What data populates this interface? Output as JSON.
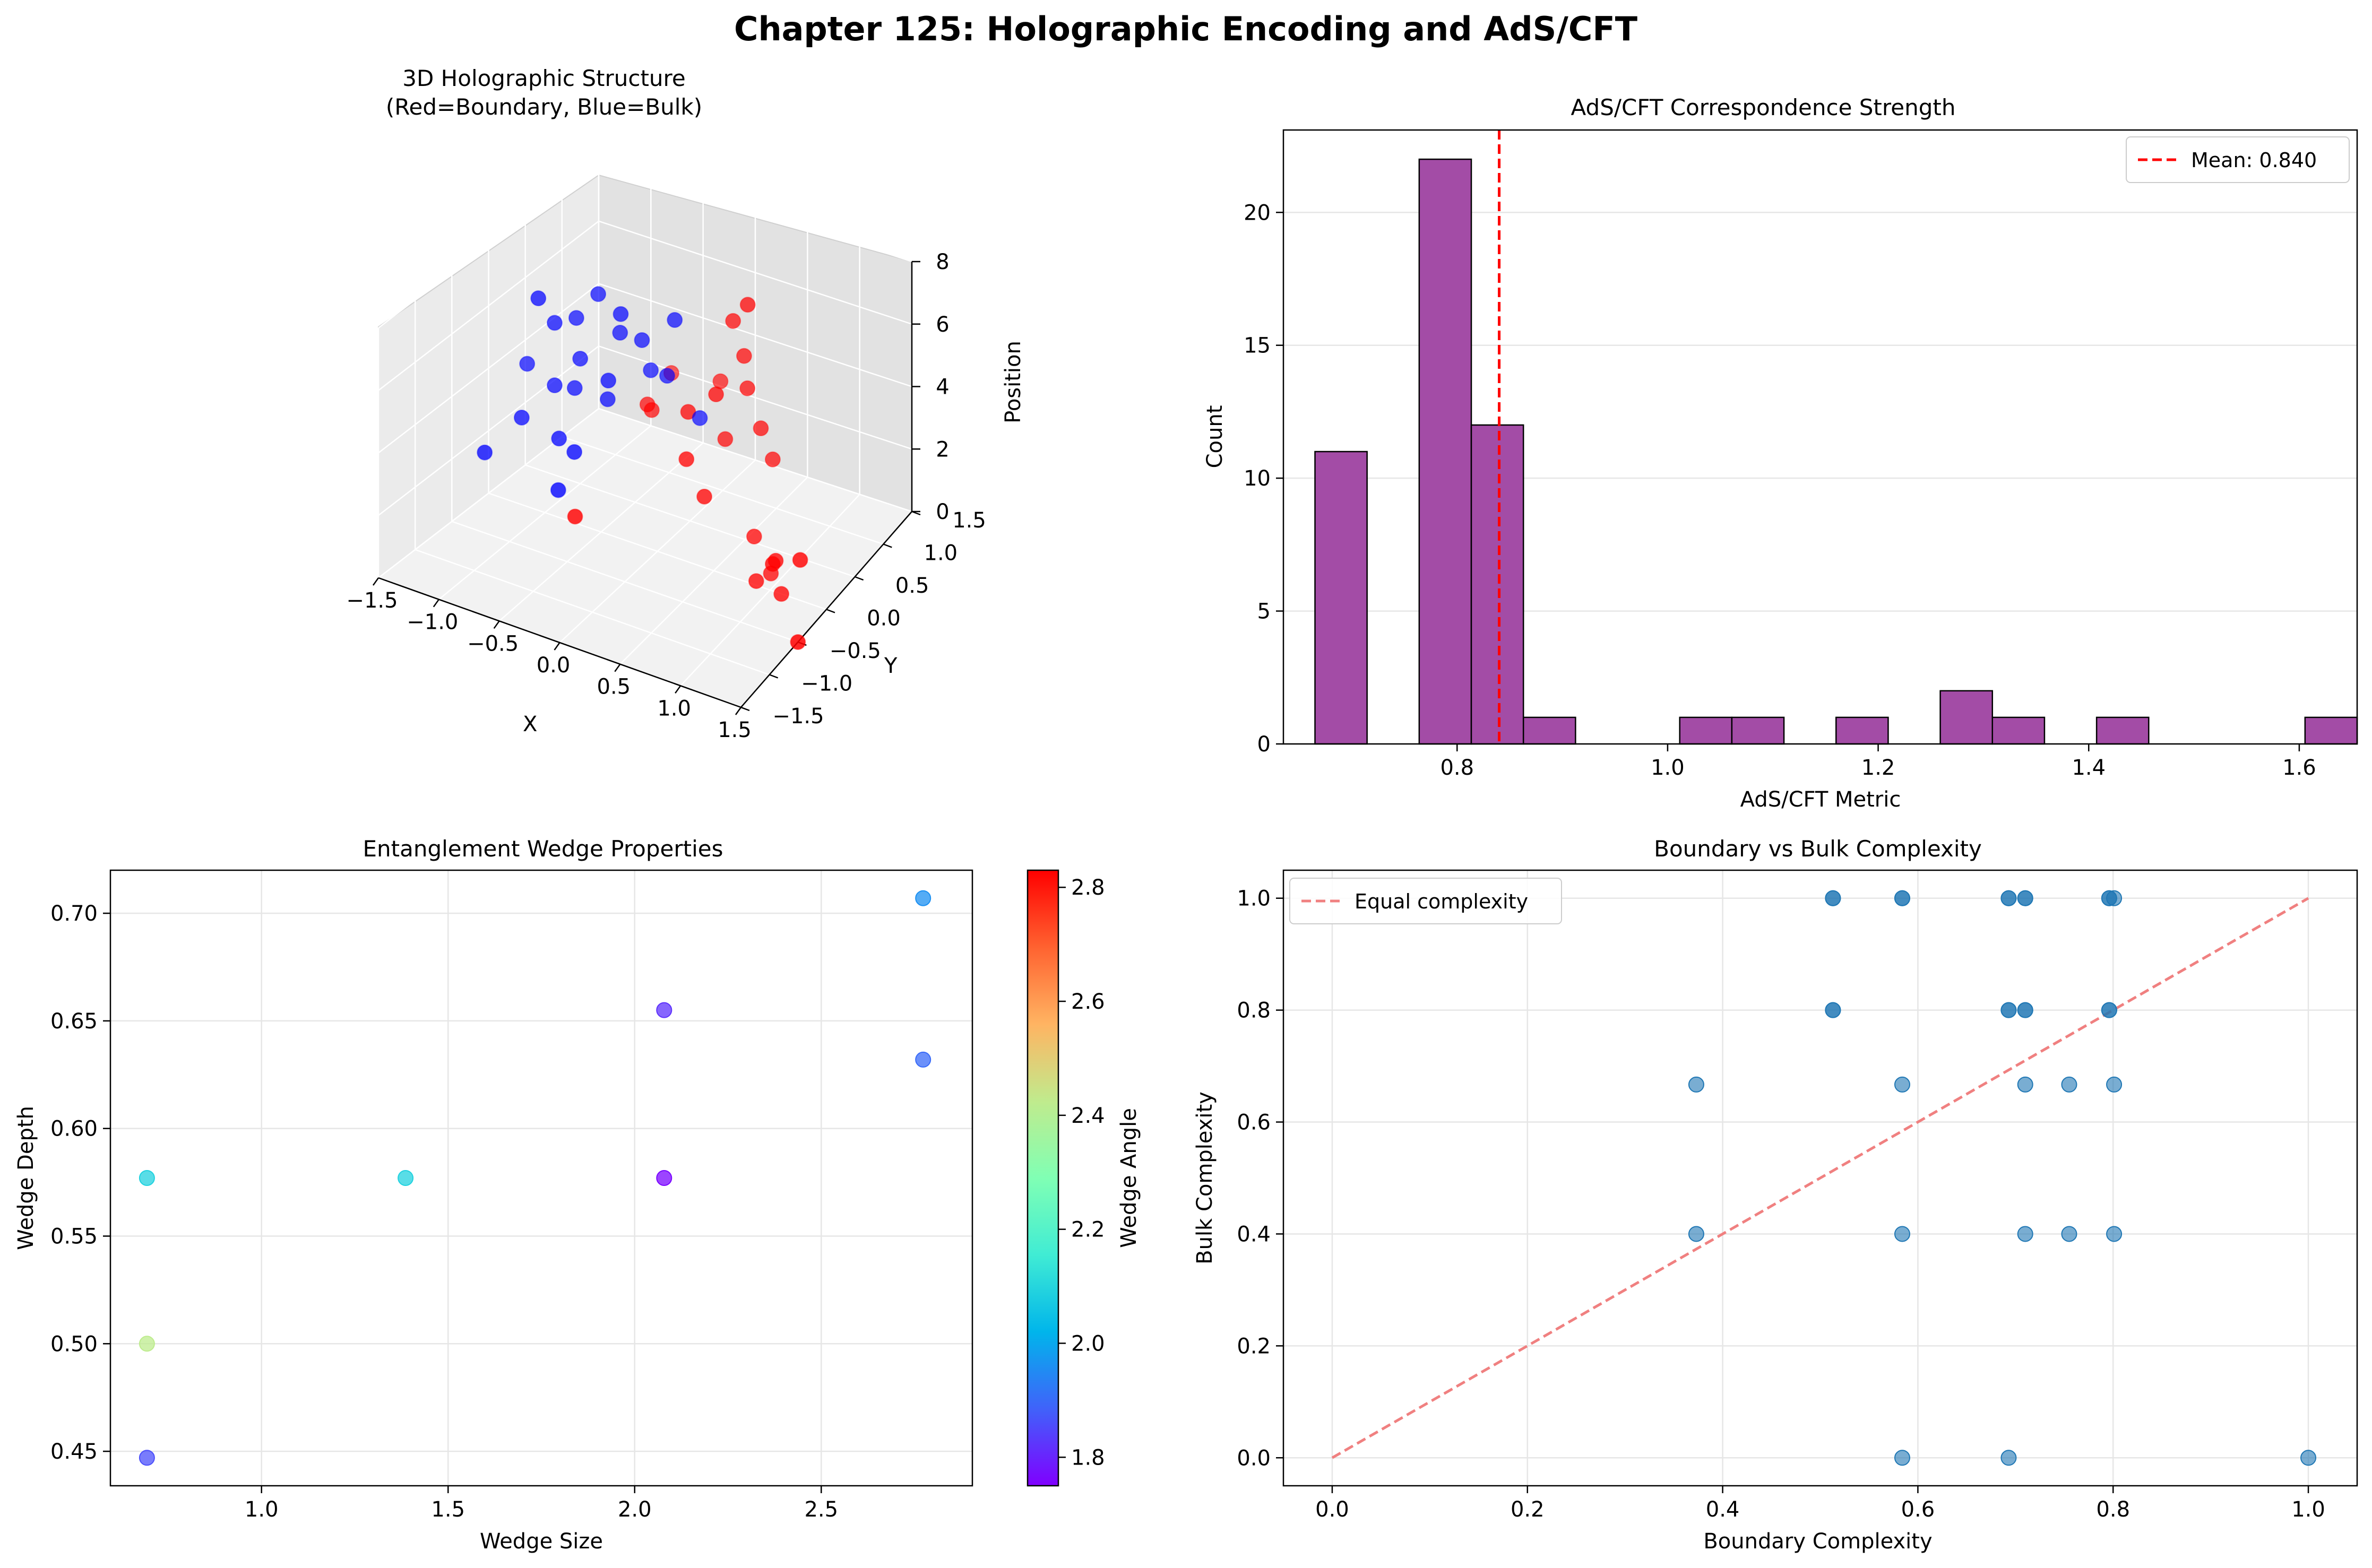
{
  "suptitle": "Chapter 125: Holographic Encoding and AdS/CFT",
  "chart_data": [
    {
      "type": "scatter",
      "projection": "3d",
      "title_line1": "3D Holographic Structure",
      "title_line2": "(Red=Boundary, Blue=Bulk)",
      "xlabel": "X",
      "ylabel": "Y",
      "zlabel": "Position",
      "xlim": [
        -1.5,
        1.5
      ],
      "ylim": [
        -1.5,
        1.5
      ],
      "zlim": [
        0,
        8
      ],
      "x_ticks": [
        "−1.5",
        "−1.0",
        "−0.5",
        "0.0",
        "0.5",
        "1.0",
        "1.5"
      ],
      "y_ticks": [
        "−1.5",
        "−1.0",
        "−0.5",
        "0.0",
        "0.5",
        "1.0",
        "1.5"
      ],
      "z_ticks": [
        "0",
        "2",
        "4",
        "6",
        "8"
      ],
      "colors": {
        "boundary": "#ff0000",
        "bulk": "#0000ff"
      },
      "series": [
        {
          "name": "Boundary",
          "points": [
            [
              0.62,
              0.33,
              8
            ],
            [
              1.4,
              -0.26,
              2
            ],
            [
              0.42,
              0.45,
              7
            ],
            [
              0.1,
              0.8,
              4
            ],
            [
              0.52,
              0.45,
              6
            ],
            [
              -0.45,
              0.6,
              3
            ],
            [
              0.55,
              0.45,
              5
            ],
            [
              -0.53,
              1.08,
              3
            ],
            [
              0.2,
              0.1,
              3
            ],
            [
              0.32,
              0.5,
              3
            ],
            [
              0.36,
              0.1,
              2
            ],
            [
              1.05,
              -0.05,
              1
            ],
            [
              -0.55,
              -0.3,
              1
            ],
            [
              0.1,
              0.3,
              4
            ],
            [
              -0.38,
              0.55,
              3
            ],
            [
              0.7,
              0.4,
              4
            ],
            [
              1.1,
              0.0,
              0
            ],
            [
              1.05,
              0.0,
              1
            ],
            [
              0.75,
              0.2,
              1
            ],
            [
              0.85,
              0.05,
              0
            ],
            [
              0.9,
              0.2,
              0
            ],
            [
              1.5,
              -0.5,
              0
            ],
            [
              0.38,
              0.25,
              5
            ],
            [
              0.78,
              0.45,
              3
            ]
          ]
        },
        {
          "name": "Bulk",
          "points": [
            [
              -1.2,
              0.45,
              5
            ],
            [
              -1.1,
              0.6,
              5
            ],
            [
              -0.9,
              0.6,
              6
            ],
            [
              -1.25,
              0.3,
              6
            ],
            [
              -0.7,
              0.6,
              5
            ],
            [
              -1.0,
              0.5,
              4
            ],
            [
              -0.65,
              0.35,
              4
            ],
            [
              -0.5,
              0.6,
              5
            ],
            [
              -1.55,
              0.6,
              3
            ],
            [
              -1.2,
              0.45,
              3
            ],
            [
              -1.05,
              0.5,
              3
            ],
            [
              -1.4,
              0.3,
              2
            ],
            [
              -1.0,
              0.2,
              2
            ],
            [
              -0.8,
              0.1,
              2
            ],
            [
              -0.85,
              -0.05,
              1
            ],
            [
              -0.6,
              0.45,
              6
            ],
            [
              -0.2,
              0.6,
              6
            ],
            [
              -0.3,
              0.65,
              4
            ],
            [
              -0.45,
              0.65,
              4
            ],
            [
              0.0,
              0.65,
              3
            ],
            [
              -1.6,
              0.1,
              1
            ],
            [
              -0.75,
              0.5,
              3
            ]
          ]
        }
      ]
    },
    {
      "type": "bar",
      "title": "AdS/CFT Correspondence Strength",
      "xlabel": "AdS/CFT Metric",
      "ylabel": "Count",
      "xlim": [
        0.635,
        1.655
      ],
      "ylim": [
        0,
        23.1
      ],
      "x_ticks": [
        "0.8",
        "1.0",
        "1.2",
        "1.4",
        "1.6"
      ],
      "y_ticks": [
        "0",
        "5",
        "10",
        "15",
        "20"
      ],
      "bar_color": "#a34ca6",
      "bin_edges": [
        0.665,
        0.7145,
        0.764,
        0.8135,
        0.863,
        0.9125,
        0.962,
        1.0115,
        1.061,
        1.1105,
        1.16,
        1.2095,
        1.259,
        1.3085,
        1.358,
        1.4075,
        1.457,
        1.5065,
        1.556,
        1.6055,
        1.655
      ],
      "values": [
        11,
        0,
        22,
        12,
        1,
        0,
        0,
        1,
        1,
        0,
        1,
        0,
        2,
        1,
        0,
        1,
        0,
        0,
        0,
        1
      ],
      "mean": 0.84,
      "legend_label": "Mean: 0.840",
      "legend_position": "upper right",
      "grid": "y"
    },
    {
      "type": "scatter",
      "title": "Entanglement Wedge Properties",
      "xlabel": "Wedge Size",
      "ylabel": "Wedge Depth",
      "colorbar_label": "Wedge Angle",
      "xlim": [
        0.595,
        2.905
      ],
      "ylim": [
        0.434,
        0.72
      ],
      "clim": [
        1.75,
        2.83
      ],
      "x_ticks": [
        "1.0",
        "1.5",
        "2.0",
        "2.5"
      ],
      "y_ticks": [
        "0.45",
        "0.50",
        "0.55",
        "0.60",
        "0.65",
        "0.70"
      ],
      "cbar_ticks": [
        "1.8",
        "2.0",
        "2.2",
        "2.4",
        "2.6",
        "2.8"
      ],
      "points": [
        {
          "x": 0.693,
          "y": 0.577,
          "c": 2.09
        },
        {
          "x": 0.693,
          "y": 0.5,
          "c": 2.42
        },
        {
          "x": 0.693,
          "y": 0.447,
          "c": 1.86
        },
        {
          "x": 1.386,
          "y": 0.577,
          "c": 2.09
        },
        {
          "x": 2.079,
          "y": 0.655,
          "c": 1.82
        },
        {
          "x": 2.079,
          "y": 0.577,
          "c": 1.76
        },
        {
          "x": 2.773,
          "y": 0.707,
          "c": 1.96
        },
        {
          "x": 2.773,
          "y": 0.632,
          "c": 1.9
        }
      ],
      "grid": true
    },
    {
      "type": "scatter",
      "title": "Boundary vs Bulk Complexity",
      "xlabel": "Boundary Complexity",
      "ylabel": "Bulk Complexity",
      "xlim": [
        -0.05,
        1.05
      ],
      "ylim": [
        -0.05,
        1.05
      ],
      "x_ticks": [
        "0.0",
        "0.2",
        "0.4",
        "0.6",
        "0.8",
        "1.0"
      ],
      "y_ticks": [
        "0.0",
        "0.2",
        "0.4",
        "0.6",
        "0.8",
        "1.0"
      ],
      "point_color": "#1f77b4",
      "line_color": "#f08080",
      "legend_label": "Equal complexity",
      "legend_position": "upper left",
      "diagonal": [
        [
          0,
          0
        ],
        [
          1,
          1
        ]
      ],
      "points": [
        [
          0.513,
          1.0
        ],
        [
          0.513,
          1.0
        ],
        [
          0.584,
          1.0
        ],
        [
          0.584,
          1.0
        ],
        [
          0.693,
          1.0
        ],
        [
          0.693,
          1.0
        ],
        [
          0.71,
          1.0
        ],
        [
          0.71,
          1.0
        ],
        [
          0.796,
          1.0
        ],
        [
          0.801,
          1.0
        ],
        [
          0.796,
          1.0
        ],
        [
          0.513,
          0.8
        ],
        [
          0.513,
          0.8
        ],
        [
          0.693,
          0.8
        ],
        [
          0.693,
          0.8
        ],
        [
          0.71,
          0.8
        ],
        [
          0.71,
          0.8
        ],
        [
          0.796,
          0.8
        ],
        [
          0.796,
          0.8
        ],
        [
          0.373,
          0.667
        ],
        [
          0.584,
          0.667
        ],
        [
          0.71,
          0.667
        ],
        [
          0.755,
          0.667
        ],
        [
          0.801,
          0.667
        ],
        [
          0.373,
          0.4
        ],
        [
          0.584,
          0.4
        ],
        [
          0.71,
          0.4
        ],
        [
          0.755,
          0.4
        ],
        [
          0.801,
          0.4
        ],
        [
          0.584,
          0.0
        ],
        [
          0.693,
          0.0
        ],
        [
          1.0,
          0.0
        ]
      ],
      "grid": true
    }
  ]
}
